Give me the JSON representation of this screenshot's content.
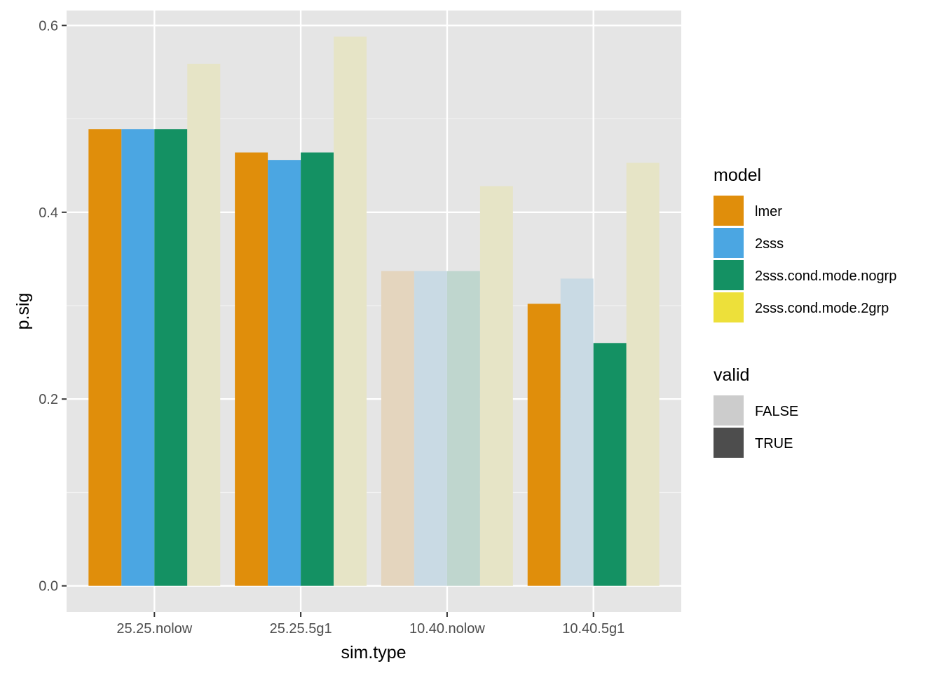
{
  "chart_data": {
    "type": "bar",
    "xlabel": "sim.type",
    "ylabel": "p.sig",
    "ylim": [
      -0.028,
      0.616
    ],
    "yticks": [
      0.0,
      0.2,
      0.4,
      0.6
    ],
    "ytick_labels": [
      "0.0",
      "0.2",
      "0.4",
      "0.6"
    ],
    "grid": true,
    "categories": [
      "25.25.nolow",
      "25.25.5g1",
      "10.40.nolow",
      "10.40.5g1"
    ],
    "series": [
      {
        "name": "lmer",
        "color": "#E08E0B",
        "values": [
          0.489,
          0.464,
          0.337,
          0.302
        ],
        "valid": [
          true,
          true,
          false,
          true
        ]
      },
      {
        "name": "2sss",
        "color": "#4BA6E2",
        "values": [
          0.489,
          0.456,
          0.337,
          0.329
        ],
        "valid": [
          true,
          true,
          false,
          false
        ]
      },
      {
        "name": "2sss.cond.mode.nogrp",
        "color": "#149163",
        "values": [
          0.489,
          0.464,
          0.337,
          0.26
        ],
        "valid": [
          true,
          true,
          false,
          true
        ]
      },
      {
        "name": "2sss.cond.mode.2grp",
        "color": "#EDE03A",
        "values": [
          0.559,
          0.588,
          0.428,
          0.453
        ],
        "valid": [
          false,
          false,
          false,
          false
        ]
      }
    ],
    "legend": {
      "placement": "right",
      "model_title": "model",
      "valid_title": "valid",
      "valid_entries": [
        {
          "label": "FALSE",
          "color": "#cccccc"
        },
        {
          "label": "TRUE",
          "color": "#4d4d4d"
        }
      ]
    }
  }
}
